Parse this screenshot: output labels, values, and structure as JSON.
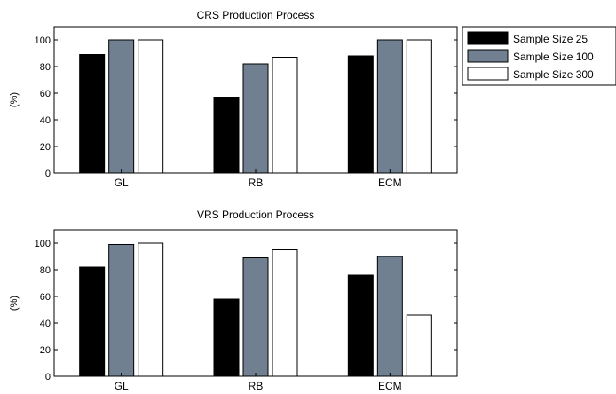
{
  "chart_data": [
    {
      "type": "bar",
      "title": "CRS Production Process",
      "xlabel": "",
      "ylabel": "(%)",
      "categories": [
        "GL",
        "RB",
        "ECM"
      ],
      "yticks": [
        "0",
        "20",
        "40",
        "60",
        "80",
        "100"
      ],
      "ylim": [
        0,
        110
      ],
      "grid": false,
      "legend": "top-right (outside)",
      "series": [
        {
          "name": "Sample Size 25",
          "color": "#000000",
          "values": [
            89,
            57,
            88
          ]
        },
        {
          "name": "Sample Size 100",
          "color": "#708090",
          "values": [
            100,
            82,
            100
          ]
        },
        {
          "name": "Sample Size 300",
          "color": "#ffffff",
          "values": [
            100,
            87,
            100
          ]
        }
      ]
    },
    {
      "type": "bar",
      "title": "VRS Production Process",
      "xlabel": "",
      "ylabel": "(%)",
      "categories": [
        "GL",
        "RB",
        "ECM"
      ],
      "yticks": [
        "0",
        "20",
        "40",
        "60",
        "80",
        "100"
      ],
      "ylim": [
        0,
        110
      ],
      "grid": false,
      "series": [
        {
          "name": "Sample Size 25",
          "color": "#000000",
          "values": [
            82,
            58,
            76
          ]
        },
        {
          "name": "Sample Size 100",
          "color": "#708090",
          "values": [
            99,
            89,
            90
          ]
        },
        {
          "name": "Sample Size 300",
          "color": "#ffffff",
          "values": [
            100,
            95,
            46
          ]
        }
      ]
    }
  ],
  "legend": {
    "entries": [
      "Sample Size 25",
      "Sample Size 100",
      "Sample Size 300"
    ]
  }
}
